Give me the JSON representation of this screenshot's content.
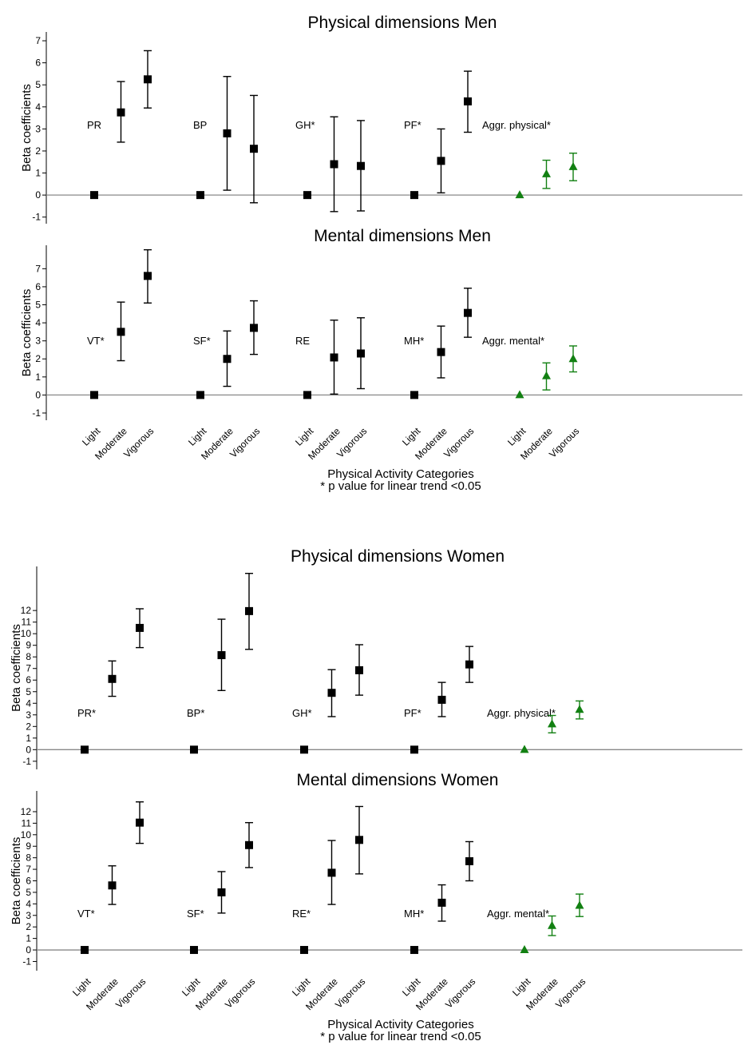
{
  "colors": {
    "main": "#000000",
    "aggregate": "#128012",
    "zero_line": "#888888"
  },
  "figure_men": {
    "xlabel": "Physical Activity Categories",
    "note": "* p value for linear trend <0.05"
  },
  "figure_women": {
    "xlabel": "Physical Activity Categories",
    "note": "* p value for linear trend <0.05"
  },
  "chart_data": [
    {
      "type": "scatter",
      "title": "Physical dimensions Men",
      "ylabel": "Beta coefficients",
      "ylim": [
        -1.3,
        7.4
      ],
      "yticks": [
        "-1",
        "0",
        "1",
        "2",
        "3",
        "4",
        "5",
        "6",
        "7"
      ],
      "categories": [
        "Light",
        "Moderate",
        "Vigorous"
      ],
      "groups": [
        {
          "label": "PR",
          "marker": "square",
          "points": [
            {
              "y": 0,
              "lo": 0,
              "hi": 0
            },
            {
              "y": 3.75,
              "lo": 2.4,
              "hi": 5.15
            },
            {
              "y": 5.25,
              "lo": 3.95,
              "hi": 6.55
            }
          ]
        },
        {
          "label": "BP",
          "marker": "square",
          "points": [
            {
              "y": 0,
              "lo": 0,
              "hi": 0
            },
            {
              "y": 2.8,
              "lo": 0.22,
              "hi": 5.38
            },
            {
              "y": 2.1,
              "lo": -0.35,
              "hi": 4.52
            }
          ]
        },
        {
          "label": "GH*",
          "marker": "square",
          "points": [
            {
              "y": 0,
              "lo": 0,
              "hi": 0
            },
            {
              "y": 1.4,
              "lo": -0.75,
              "hi": 3.55
            },
            {
              "y": 1.32,
              "lo": -0.72,
              "hi": 3.38
            }
          ]
        },
        {
          "label": "PF*",
          "marker": "square",
          "points": [
            {
              "y": 0,
              "lo": 0,
              "hi": 0
            },
            {
              "y": 1.55,
              "lo": 0.1,
              "hi": 3.0
            },
            {
              "y": 4.25,
              "lo": 2.85,
              "hi": 5.62
            }
          ]
        },
        {
          "label": "Aggr. physical*",
          "marker": "triangle",
          "aggregate": true,
          "points": [
            {
              "y": 0,
              "lo": 0,
              "hi": 0
            },
            {
              "y": 0.95,
              "lo": 0.3,
              "hi": 1.58
            },
            {
              "y": 1.28,
              "lo": 0.65,
              "hi": 1.9
            }
          ]
        }
      ]
    },
    {
      "type": "scatter",
      "title": "Mental dimensions Men",
      "ylabel": "Beta coefficients",
      "ylim": [
        -1.4,
        8.3
      ],
      "yticks": [
        "-1",
        "0",
        "1",
        "2",
        "3",
        "4",
        "5",
        "6",
        "7"
      ],
      "categories": [
        "Light",
        "Moderate",
        "Vigorous"
      ],
      "groups": [
        {
          "label": "VT*",
          "marker": "square",
          "points": [
            {
              "y": 0,
              "lo": 0,
              "hi": 0
            },
            {
              "y": 3.5,
              "lo": 1.9,
              "hi": 5.15
            },
            {
              "y": 6.6,
              "lo": 5.1,
              "hi": 8.05
            }
          ]
        },
        {
          "label": "SF*",
          "marker": "square",
          "points": [
            {
              "y": 0,
              "lo": 0,
              "hi": 0
            },
            {
              "y": 2.0,
              "lo": 0.48,
              "hi": 3.55
            },
            {
              "y": 3.72,
              "lo": 2.25,
              "hi": 5.22
            }
          ]
        },
        {
          "label": "RE",
          "marker": "square",
          "points": [
            {
              "y": 0,
              "lo": 0,
              "hi": 0
            },
            {
              "y": 2.08,
              "lo": 0.05,
              "hi": 4.15
            },
            {
              "y": 2.3,
              "lo": 0.35,
              "hi": 4.28
            }
          ]
        },
        {
          "label": "MH*",
          "marker": "square",
          "points": [
            {
              "y": 0,
              "lo": 0,
              "hi": 0
            },
            {
              "y": 2.38,
              "lo": 0.95,
              "hi": 3.82
            },
            {
              "y": 4.55,
              "lo": 3.2,
              "hi": 5.92
            }
          ]
        },
        {
          "label": "Aggr. mental*",
          "marker": "triangle",
          "aggregate": true,
          "points": [
            {
              "y": 0,
              "lo": 0,
              "hi": 0
            },
            {
              "y": 1.05,
              "lo": 0.28,
              "hi": 1.78
            },
            {
              "y": 2.0,
              "lo": 1.28,
              "hi": 2.72
            }
          ]
        }
      ]
    },
    {
      "type": "scatter",
      "title": "Physical dimensions Women",
      "ylabel": "Beta coefficients",
      "ylim": [
        -1.7,
        15.8
      ],
      "yticks": [
        "-1",
        "0",
        "1",
        "2",
        "3",
        "4",
        "5",
        "6",
        "7",
        "8",
        "9",
        "10",
        "11",
        "12"
      ],
      "categories": [
        "Light",
        "Moderate",
        "Vigorous"
      ],
      "groups": [
        {
          "label": "PR*",
          "marker": "square",
          "points": [
            {
              "y": 0,
              "lo": 0,
              "hi": 0
            },
            {
              "y": 6.1,
              "lo": 4.6,
              "hi": 7.65
            },
            {
              "y": 10.5,
              "lo": 8.8,
              "hi": 12.15
            }
          ]
        },
        {
          "label": "BP*",
          "marker": "square",
          "points": [
            {
              "y": 0,
              "lo": 0,
              "hi": 0
            },
            {
              "y": 8.15,
              "lo": 5.1,
              "hi": 11.25
            },
            {
              "y": 11.95,
              "lo": 8.65,
              "hi": 15.2
            }
          ]
        },
        {
          "label": "GH*",
          "marker": "square",
          "points": [
            {
              "y": 0,
              "lo": 0,
              "hi": 0
            },
            {
              "y": 4.9,
              "lo": 2.85,
              "hi": 6.9
            },
            {
              "y": 6.85,
              "lo": 4.7,
              "hi": 9.05
            }
          ]
        },
        {
          "label": "PF*",
          "marker": "square",
          "points": [
            {
              "y": 0,
              "lo": 0,
              "hi": 0
            },
            {
              "y": 4.3,
              "lo": 2.85,
              "hi": 5.8
            },
            {
              "y": 7.35,
              "lo": 5.8,
              "hi": 8.9
            }
          ]
        },
        {
          "label": "Aggr. physical*",
          "marker": "triangle",
          "aggregate": true,
          "points": [
            {
              "y": 0,
              "lo": 0,
              "hi": 0
            },
            {
              "y": 2.2,
              "lo": 1.45,
              "hi": 2.95
            },
            {
              "y": 3.45,
              "lo": 2.65,
              "hi": 4.2
            }
          ]
        }
      ]
    },
    {
      "type": "scatter",
      "title": "Mental dimensions Women",
      "ylabel": "Beta coefficients",
      "ylim": [
        -1.8,
        13.8
      ],
      "yticks": [
        "-1",
        "0",
        "1",
        "2",
        "3",
        "4",
        "5",
        "6",
        "7",
        "8",
        "9",
        "10",
        "11",
        "12"
      ],
      "categories": [
        "Light",
        "Moderate",
        "Vigorous"
      ],
      "groups": [
        {
          "label": "VT*",
          "marker": "square",
          "points": [
            {
              "y": 0,
              "lo": 0,
              "hi": 0
            },
            {
              "y": 5.6,
              "lo": 3.95,
              "hi": 7.3
            },
            {
              "y": 11.05,
              "lo": 9.25,
              "hi": 12.85
            }
          ]
        },
        {
          "label": "SF*",
          "marker": "square",
          "points": [
            {
              "y": 0,
              "lo": 0,
              "hi": 0
            },
            {
              "y": 5.0,
              "lo": 3.2,
              "hi": 6.8
            },
            {
              "y": 9.1,
              "lo": 7.15,
              "hi": 11.05
            }
          ]
        },
        {
          "label": "RE*",
          "marker": "square",
          "points": [
            {
              "y": 0,
              "lo": 0,
              "hi": 0
            },
            {
              "y": 6.7,
              "lo": 3.95,
              "hi": 9.5
            },
            {
              "y": 9.55,
              "lo": 6.6,
              "hi": 12.45
            }
          ]
        },
        {
          "label": "MH*",
          "marker": "square",
          "points": [
            {
              "y": 0,
              "lo": 0,
              "hi": 0
            },
            {
              "y": 4.1,
              "lo": 2.5,
              "hi": 5.65
            },
            {
              "y": 7.7,
              "lo": 6.0,
              "hi": 9.4
            }
          ]
        },
        {
          "label": "Aggr. mental*",
          "marker": "triangle",
          "aggregate": true,
          "points": [
            {
              "y": 0,
              "lo": 0,
              "hi": 0
            },
            {
              "y": 2.1,
              "lo": 1.25,
              "hi": 2.95
            },
            {
              "y": 3.85,
              "lo": 2.9,
              "hi": 4.85
            }
          ]
        }
      ]
    }
  ]
}
